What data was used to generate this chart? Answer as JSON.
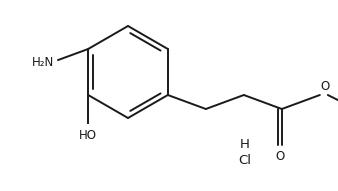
{
  "figure_width": 3.38,
  "figure_height": 1.91,
  "dpi": 100,
  "background_color": "#ffffff",
  "line_color": "#1a1a1a",
  "line_width": 1.4,
  "font_size_label": 8.5,
  "font_size_hcl": 8.5,
  "nh2_label": "H₂N",
  "oh_label": "HO",
  "h_label": "H",
  "cl_label": "Cl",
  "o_carbonyl_label": "O",
  "o_ester_label": "O"
}
